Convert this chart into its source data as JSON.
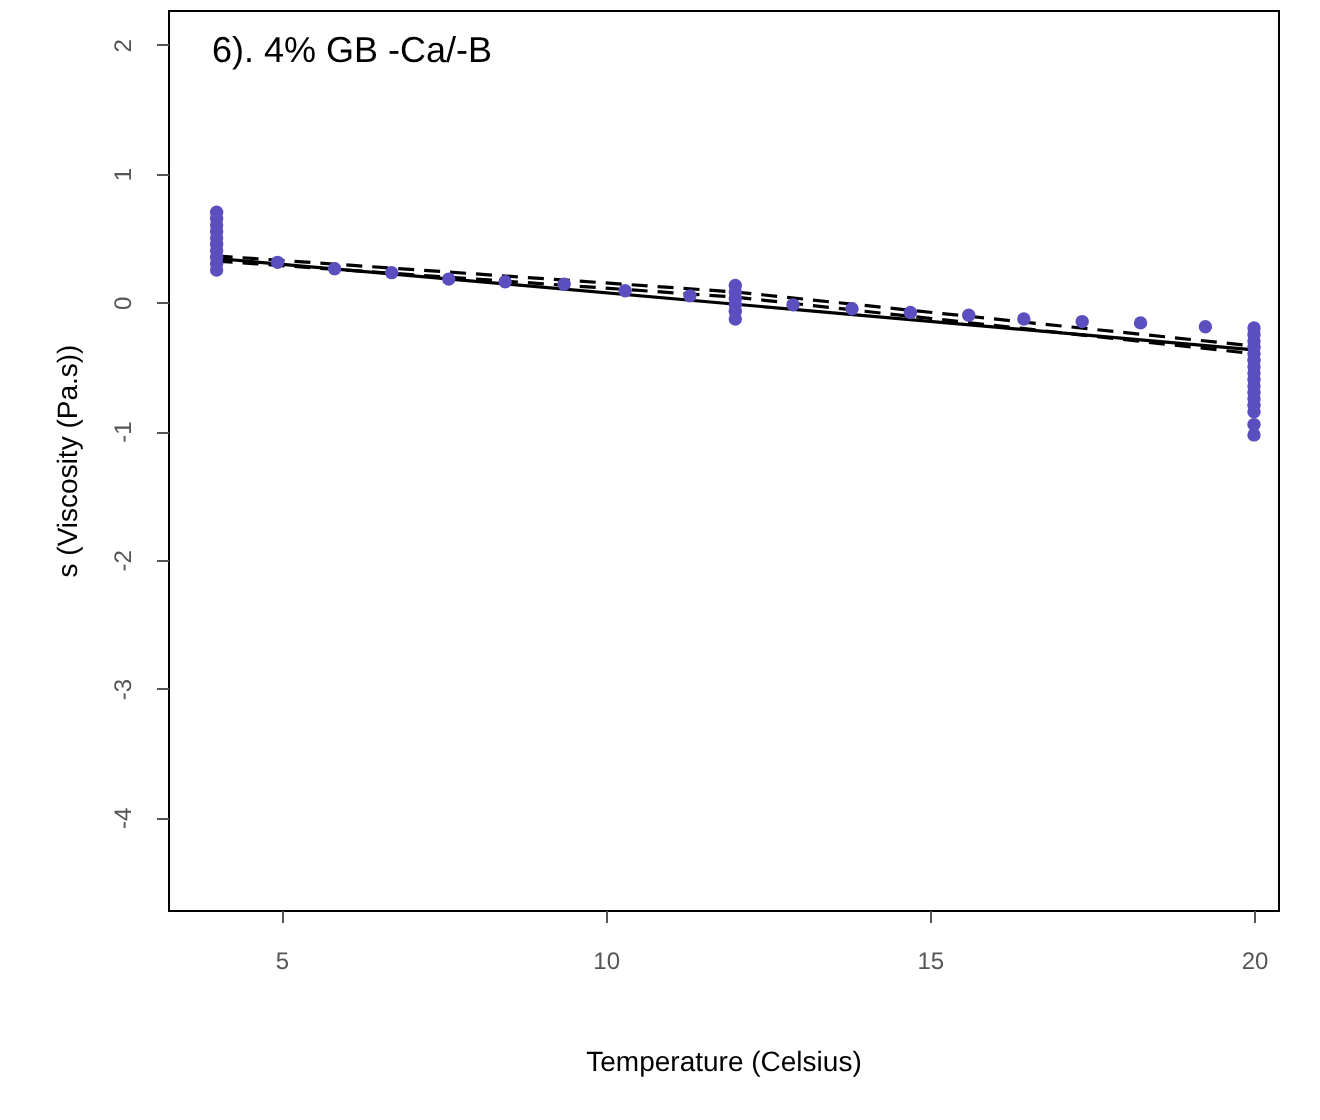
{
  "chart_data": {
    "type": "scatter",
    "xlabel": "Temperature (Celsius)",
    "ylabel": "s (Viscosity (Pa.s))",
    "annotations": [
      "6). 4% GB -Ca/-B"
    ],
    "xlim": [
      3.25,
      20.37
    ],
    "ylim": [
      -4.72,
      2.27
    ],
    "xticks": [
      5,
      10,
      15,
      20
    ],
    "yticks": [
      -4,
      -3,
      -2,
      -1,
      0,
      1,
      2
    ],
    "grid": false,
    "series": [
      {
        "marker": "circle",
        "color": "#5b4fbf",
        "x": [
          4,
          4,
          4,
          4,
          4,
          4,
          4,
          4,
          4,
          4,
          4.94,
          5.82,
          6.7,
          7.58,
          8.45,
          9.36,
          10.3,
          11.3,
          12,
          12,
          12,
          12,
          12,
          12,
          12.89,
          13.8,
          14.7,
          15.6,
          16.45,
          17.35,
          18.25,
          19.25,
          20,
          20,
          20,
          20,
          20,
          20,
          20,
          20,
          20,
          20,
          20,
          20,
          20,
          20,
          20,
          20
        ],
        "values": [
          0.25,
          0.3,
          0.35,
          0.4,
          0.45,
          0.5,
          0.55,
          0.6,
          0.65,
          0.7,
          0.31,
          0.26,
          0.23,
          0.18,
          0.16,
          0.14,
          0.09,
          0.05,
          0.13,
          0.08,
          0.03,
          -0.02,
          -0.07,
          -0.13,
          -0.02,
          -0.05,
          -0.08,
          -0.1,
          -0.13,
          -0.15,
          -0.16,
          -0.19,
          -0.2,
          -0.25,
          -0.3,
          -0.35,
          -0.4,
          -0.45,
          -0.5,
          -0.55,
          -0.6,
          -0.65,
          -0.7,
          -0.75,
          -0.8,
          -0.85,
          -0.95,
          -1.03
        ]
      },
      {
        "type": "line",
        "color": "#000000",
        "line_style": "solid",
        "x": [
          4,
          20
        ],
        "values": [
          0.34,
          -0.37
        ]
      },
      {
        "type": "line",
        "color": "#000000",
        "line_style": "dashed",
        "x": [
          4,
          12,
          20
        ],
        "values": [
          0.32,
          0.04,
          -0.4
        ]
      },
      {
        "type": "line",
        "color": "#000000",
        "line_style": "dashed",
        "x": [
          4,
          12,
          20
        ],
        "values": [
          0.36,
          0.08,
          -0.34
        ]
      }
    ]
  }
}
